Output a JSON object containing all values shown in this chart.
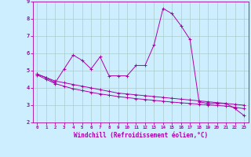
{
  "xlabel": "Windchill (Refroidissement éolien,°C)",
  "background_color": "#cceeff",
  "grid_color": "#aacccc",
  "line_color": "#aa00aa",
  "xlim": [
    -0.5,
    23.5
  ],
  "ylim": [
    2,
    9
  ],
  "xticks": [
    0,
    1,
    2,
    3,
    4,
    5,
    6,
    7,
    8,
    9,
    10,
    11,
    12,
    13,
    14,
    15,
    16,
    17,
    18,
    19,
    20,
    21,
    22,
    23
  ],
  "yticks": [
    2,
    3,
    4,
    5,
    6,
    7,
    8,
    9
  ],
  "series1_x": [
    0,
    1,
    2,
    3,
    4,
    5,
    6,
    7,
    8,
    9,
    10,
    11,
    12,
    13,
    14,
    15,
    16,
    17,
    18,
    19,
    20,
    21,
    22,
    23
  ],
  "series1_y": [
    4.8,
    4.6,
    4.3,
    5.1,
    5.9,
    5.6,
    5.1,
    5.8,
    4.7,
    4.7,
    4.7,
    5.3,
    5.3,
    6.5,
    8.6,
    8.3,
    7.6,
    6.8,
    3.2,
    3.1,
    3.1,
    3.1,
    2.8,
    2.4
  ],
  "series2_x": [
    0,
    1,
    2,
    3,
    4,
    5,
    6,
    7,
    8,
    9,
    10,
    11,
    12,
    13,
    14,
    15,
    16,
    17,
    18,
    19,
    20,
    21,
    22,
    23
  ],
  "series2_y": [
    4.8,
    4.6,
    4.4,
    4.3,
    4.2,
    4.1,
    4.0,
    3.9,
    3.8,
    3.7,
    3.65,
    3.6,
    3.55,
    3.5,
    3.45,
    3.4,
    3.35,
    3.3,
    3.25,
    3.2,
    3.15,
    3.1,
    3.05,
    3.0
  ],
  "series3_x": [
    0,
    1,
    2,
    3,
    4,
    5,
    6,
    7,
    8,
    9,
    10,
    11,
    12,
    13,
    14,
    15,
    16,
    17,
    18,
    19,
    20,
    21,
    22,
    23
  ],
  "series3_y": [
    4.75,
    4.5,
    4.25,
    4.1,
    3.95,
    3.85,
    3.75,
    3.65,
    3.58,
    3.5,
    3.44,
    3.38,
    3.33,
    3.28,
    3.23,
    3.18,
    3.14,
    3.1,
    3.06,
    3.02,
    2.98,
    2.95,
    2.88,
    2.8
  ]
}
